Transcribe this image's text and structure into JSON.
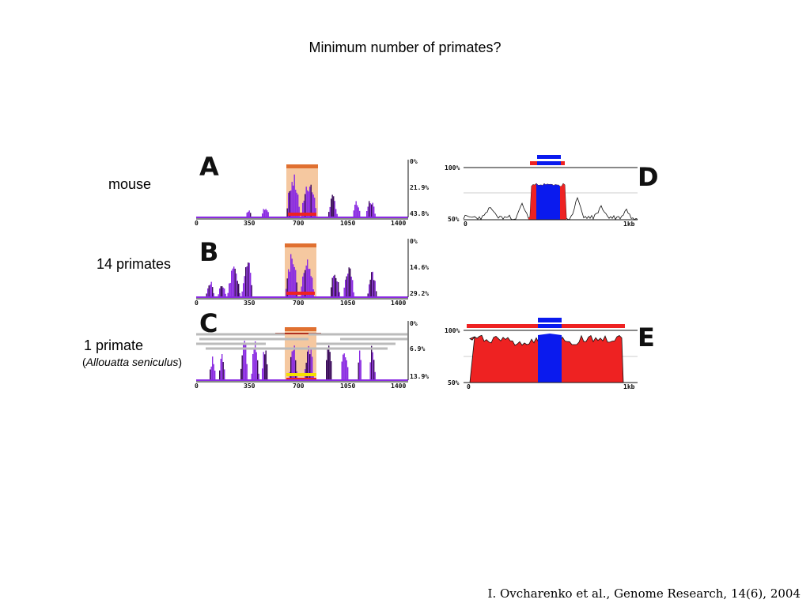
{
  "slide": {
    "title": "Minimum number of primates?",
    "citation": "I. Ovcharenko et al., Genome Research, 14(6), 2004"
  },
  "row_labels": {
    "mouse": "mouse",
    "primates14": "14 primates",
    "primate1": "1 primate",
    "species_open": "(",
    "species": "Allouatta seniculus",
    "species_close": ")"
  },
  "panels": {
    "A": {
      "letter": "A",
      "x_ticks": [
        "0",
        "350",
        "700",
        "1050",
        "1400"
      ],
      "y_ticks": [
        "0%",
        "21.9%",
        "43.8%"
      ]
    },
    "B": {
      "letter": "B",
      "x_ticks": [
        "0",
        "350",
        "700",
        "1050",
        "1400"
      ],
      "y_ticks": [
        "0%",
        "14.6%",
        "29.2%"
      ]
    },
    "C": {
      "letter": "C",
      "x_ticks": [
        "0",
        "350",
        "700",
        "1050",
        "1400"
      ],
      "y_ticks": [
        "0%",
        "6.9%",
        "13.9%"
      ]
    },
    "D": {
      "letter": "D",
      "y_top": "100%",
      "y_bottom": "50%",
      "x_start": "0",
      "x_end": "1kb"
    },
    "E": {
      "letter": "E",
      "y_top": "100%",
      "y_bottom": "50%",
      "x_start": "0",
      "x_end": "1kb"
    }
  },
  "colors": {
    "purple": "#8a2be2",
    "dark_purple": "#3a0a5a",
    "highlight": "#f5c8a0",
    "orange_bar": "#e07030",
    "red": "#ee2222",
    "blue": "#0a1aee",
    "yellow": "#f5e000"
  }
}
